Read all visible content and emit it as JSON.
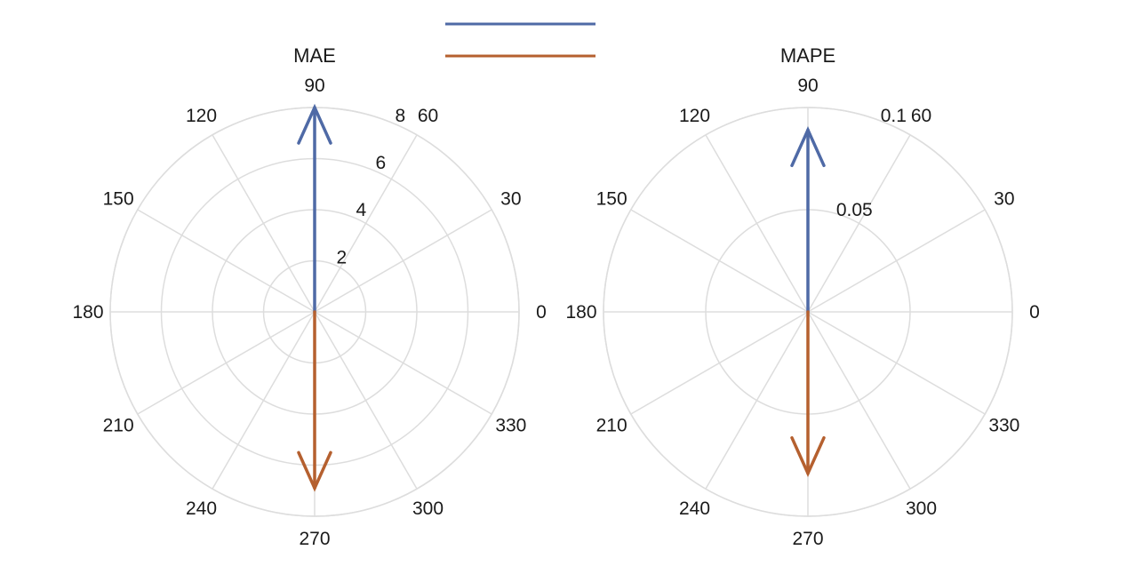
{
  "colors": {
    "background": "#ffffff",
    "grid": "#dddddd",
    "text": "#1a1a1a",
    "series_blue": "#4f6aa6",
    "series_orange": "#b5602f"
  },
  "legend": {
    "placement": "top-center",
    "entries": [
      {
        "label": "",
        "color": "#4f6aa6"
      },
      {
        "label": "",
        "color": "#b5602f"
      }
    ]
  },
  "chart_data": [
    {
      "type": "polar-vector",
      "title": "MAE",
      "angle_ticks": [
        "0",
        "30",
        "60",
        "90",
        "120",
        "150",
        "180",
        "210",
        "240",
        "270",
        "300",
        "330"
      ],
      "angle_tick_values": [
        0,
        30,
        60,
        90,
        120,
        150,
        180,
        210,
        240,
        270,
        300,
        330
      ],
      "radial_ticks": [
        "2",
        "4",
        "6",
        "8"
      ],
      "radial_tick_values": [
        2,
        4,
        6,
        8
      ],
      "rlim": [
        0,
        8
      ],
      "grid": true,
      "series": [
        {
          "angle_deg": 90,
          "magnitude": 8.0,
          "color": "#4f6aa6"
        },
        {
          "angle_deg": 270,
          "magnitude": 6.9,
          "color": "#b5602f"
        }
      ]
    },
    {
      "type": "polar-vector",
      "title": "MAPE",
      "angle_ticks": [
        "0",
        "30",
        "60",
        "90",
        "120",
        "150",
        "180",
        "210",
        "240",
        "270",
        "300",
        "330"
      ],
      "angle_tick_values": [
        0,
        30,
        60,
        90,
        120,
        150,
        180,
        210,
        240,
        270,
        300,
        330
      ],
      "radial_ticks": [
        "0.05",
        "0.1"
      ],
      "radial_tick_values": [
        0.05,
        0.1
      ],
      "rlim": [
        0,
        0.1
      ],
      "grid": true,
      "series": [
        {
          "angle_deg": 90,
          "magnitude": 0.089,
          "color": "#4f6aa6"
        },
        {
          "angle_deg": 270,
          "magnitude": 0.079,
          "color": "#b5602f"
        }
      ]
    }
  ]
}
